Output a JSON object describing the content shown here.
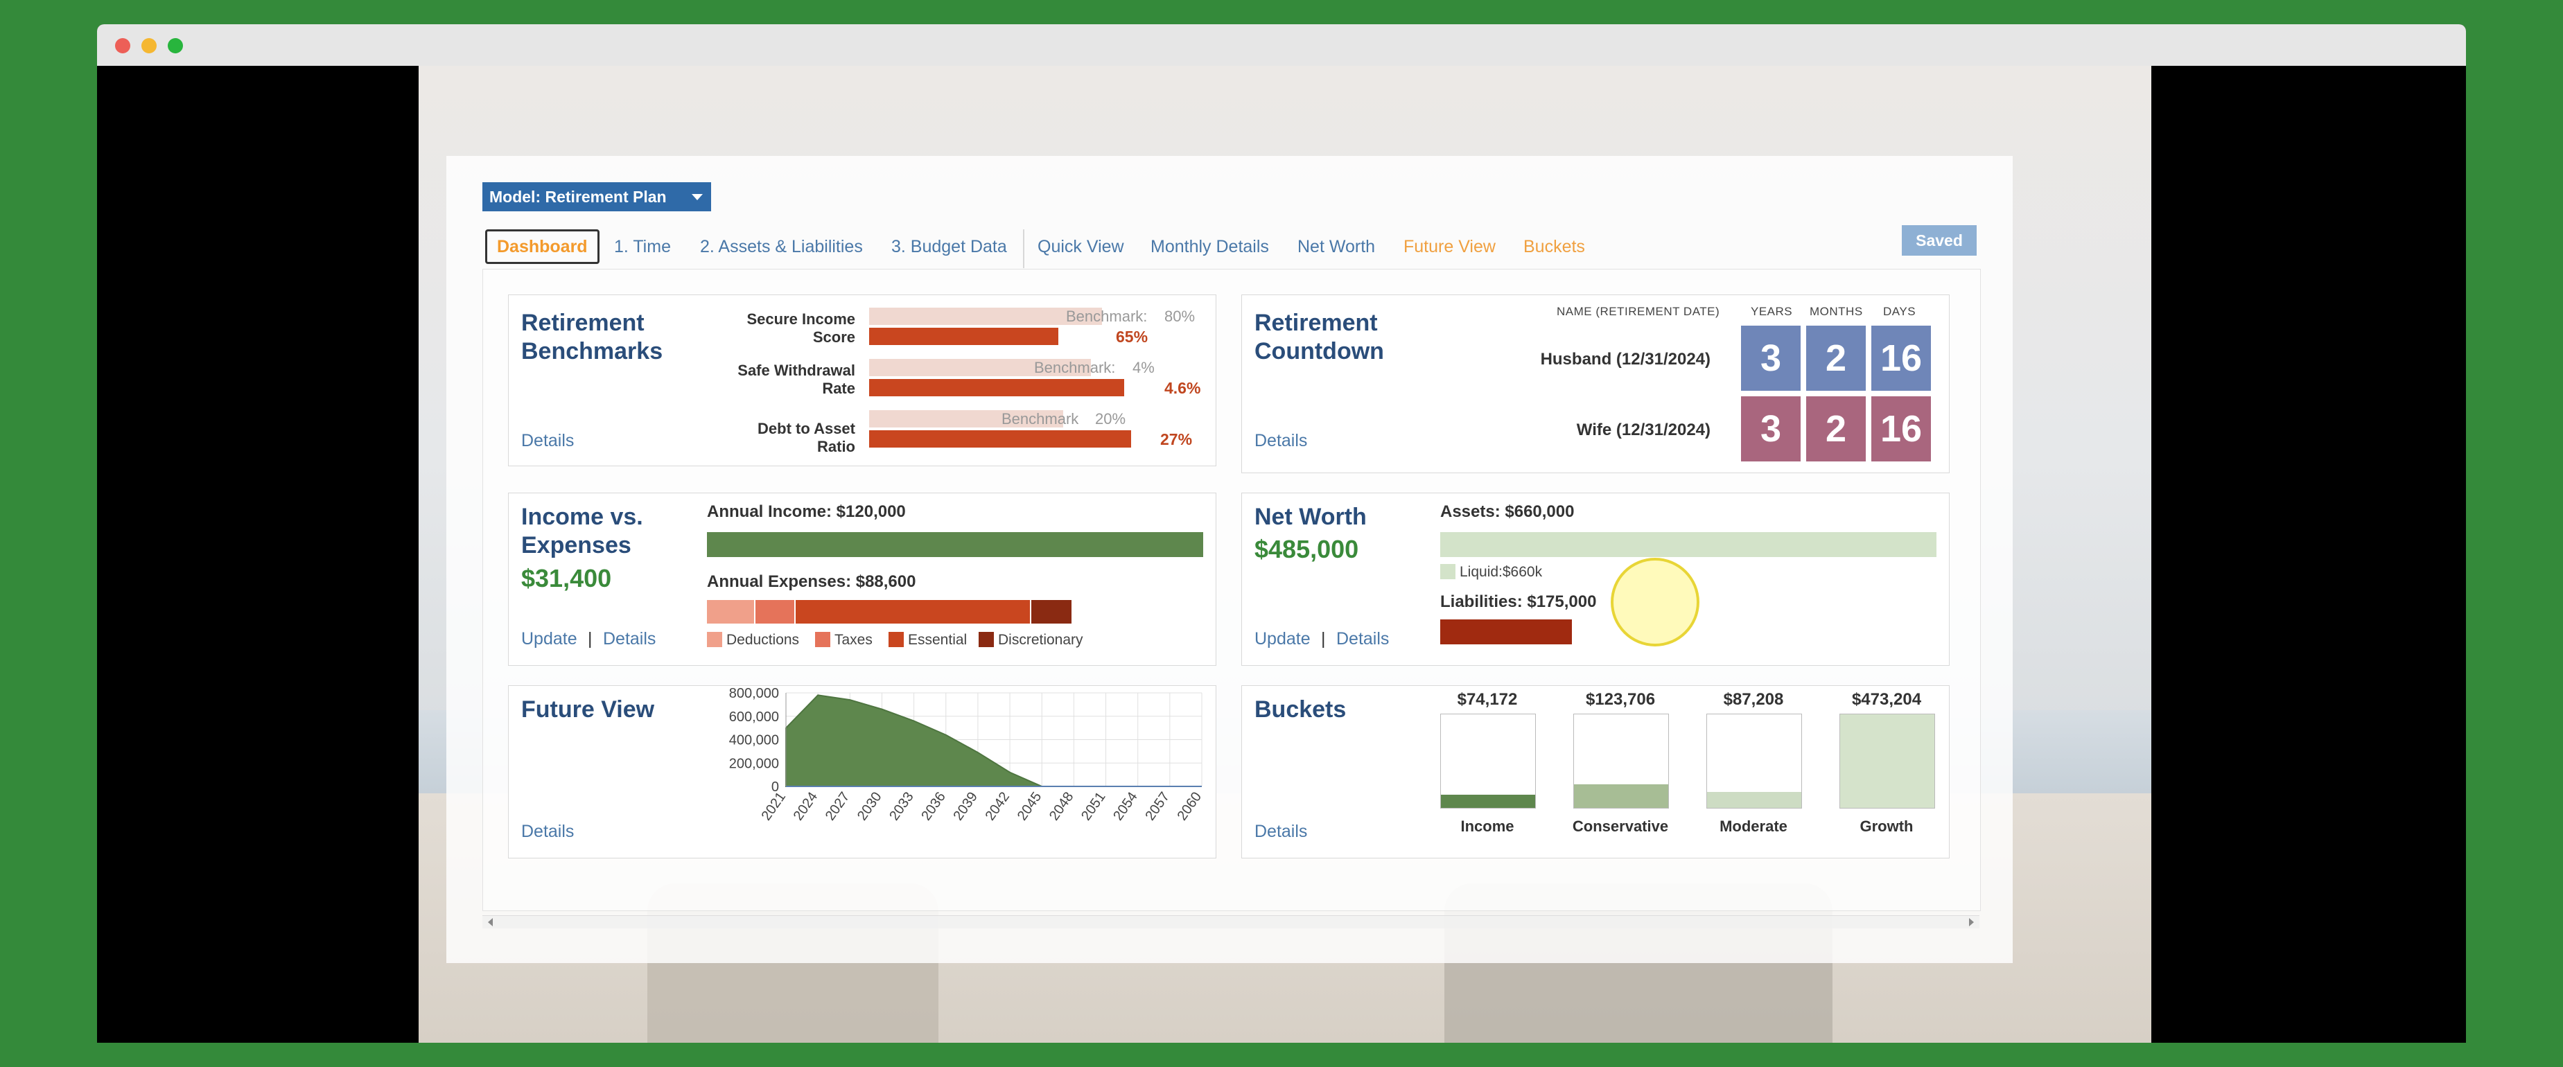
{
  "window": {
    "controls": [
      "close",
      "minimize",
      "maximize"
    ]
  },
  "model_button": {
    "label": "Model: Retirement Plan"
  },
  "tabs": [
    {
      "label": "Dashboard",
      "active": true
    },
    {
      "label": "1. Time"
    },
    {
      "label": "2. Assets & Liabilities"
    },
    {
      "label": "3. Budget Data"
    },
    {
      "label": "Quick View"
    },
    {
      "label": "Monthly Details"
    },
    {
      "label": "Net Worth"
    },
    {
      "label": "Future View"
    },
    {
      "label": "Buckets"
    }
  ],
  "saved_label": "Saved",
  "benchmarks": {
    "title": "Retirement Benchmarks",
    "details": "Details",
    "benchmark_word": "Benchmark:",
    "rows": [
      {
        "label": "Secure Income Score",
        "benchmark_pct": "80%",
        "benchmark_value": 80,
        "value_pct": "65%",
        "value": 65
      },
      {
        "label": "Safe Withdrawal Rate",
        "benchmark_pct": "4%",
        "benchmark_value": 4,
        "value_pct": "4.6%",
        "value": 4.6
      },
      {
        "label": "Debt to Asset Ratio",
        "benchmark_pct": "20%",
        "benchmark_value": 20,
        "value_pct": "27%",
        "value": 27
      }
    ],
    "row2_benchmark_word": "Benchmark",
    "colors": {
      "benchmark": "#f0d8d0",
      "value": "#c9461f"
    }
  },
  "countdown": {
    "title": "Retirement Countdown",
    "details": "Details",
    "headers": {
      "name": "NAME (RETIREMENT DATE)",
      "years": "YEARS",
      "months": "MONTHS",
      "days": "DAYS"
    },
    "people": [
      {
        "name": "Husband (12/31/2024)",
        "years": "3",
        "months": "2",
        "days": "16",
        "color": "#6f86b8"
      },
      {
        "name": "Wife (12/31/2024)",
        "years": "3",
        "months": "2",
        "days": "16",
        "color": "#a9667e"
      }
    ]
  },
  "income": {
    "title": "Income vs. Expenses",
    "net": "$31,400",
    "annual_income_label": "Annual Income: $120,000",
    "annual_income": 120000,
    "annual_expenses_label": "Annual Expenses: $88,600",
    "annual_expenses": 88600,
    "update": "Update",
    "separator": "|",
    "details": "Details",
    "legend": [
      {
        "name": "Deductions",
        "color": "#f0a08a"
      },
      {
        "name": "Taxes",
        "color": "#e5735a"
      },
      {
        "name": "Essential",
        "color": "#c9461f"
      },
      {
        "name": "Discretionary",
        "color": "#8a2a12"
      }
    ],
    "colors": {
      "income": "#5e874d"
    }
  },
  "net_worth": {
    "title": "Net Worth",
    "value": "$485,000",
    "assets_label": "Assets: $660,000",
    "assets": 660000,
    "liquid_label": "Liquid:$660k",
    "liabilities_label": "Liabilities: $175,000",
    "liabilities": 175000,
    "update": "Update",
    "separator": "|",
    "details": "Details",
    "colors": {
      "assets": "#d3e3c9",
      "liabilities": "#a02a10"
    }
  },
  "future_view": {
    "title": "Future View",
    "details": "Details"
  },
  "chart_data": {
    "type": "area",
    "title": "Future View",
    "x": [
      "2021",
      "2024",
      "2027",
      "2030",
      "2033",
      "2036",
      "2039",
      "2042",
      "2045",
      "2048",
      "2051",
      "2054",
      "2057",
      "2060"
    ],
    "y_ticks": [
      "800,000",
      "600,000",
      "400,000",
      "200,000",
      "0"
    ],
    "ylim": [
      0,
      800000
    ],
    "series": [
      {
        "values": [
          500000,
          780000,
          740000,
          660000,
          560000,
          440000,
          290000,
          120000,
          0,
          0,
          0,
          0,
          0,
          0
        ],
        "color": "#5e874d"
      }
    ],
    "grid": true
  },
  "buckets": {
    "title": "Buckets",
    "details": "Details",
    "items": [
      {
        "name": "Income",
        "value_label": "$74,172",
        "fill": 0.14,
        "color": "#5e874d"
      },
      {
        "name": "Conservative",
        "value_label": "$123,706",
        "fill": 0.25,
        "color": "#a7bd95"
      },
      {
        "name": "Moderate",
        "value_label": "$87,208",
        "fill": 0.17,
        "color": "#cddcc3"
      },
      {
        "name": "Growth",
        "value_label": "$473,204",
        "fill": 1.0,
        "color": "#d5e3cb"
      }
    ]
  }
}
